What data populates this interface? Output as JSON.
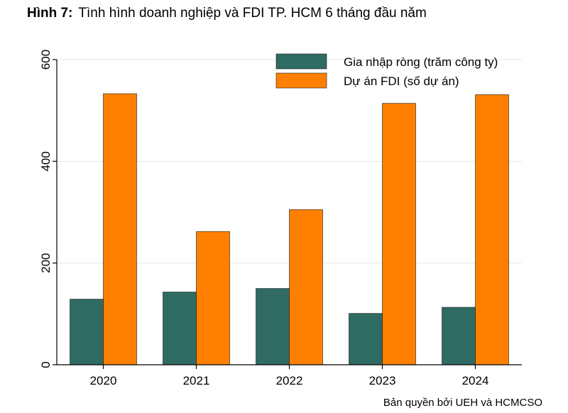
{
  "title_label": "Hình 7:",
  "title_text": "Tình hình doanh nghiệp và FDI TP. HCM 6 tháng đầu năm",
  "footer": "Bản quyền bởi UEH và HCMCSO",
  "chart_data": {
    "type": "bar",
    "categories": [
      "2020",
      "2021",
      "2022",
      "2023",
      "2024"
    ],
    "series": [
      {
        "name": "Gia nhập ròng (trăm công ty)",
        "color": "#2f6b62",
        "values": [
          129,
          143,
          150,
          101,
          113
        ]
      },
      {
        "name": "Dự án FDI (số dự án)",
        "color": "#ff8000",
        "values": [
          533,
          262,
          305,
          514,
          531
        ]
      }
    ],
    "ylim": [
      0,
      600
    ],
    "yticks": [
      0,
      200,
      400,
      600
    ],
    "grid": true,
    "legend_position": "top-right"
  }
}
